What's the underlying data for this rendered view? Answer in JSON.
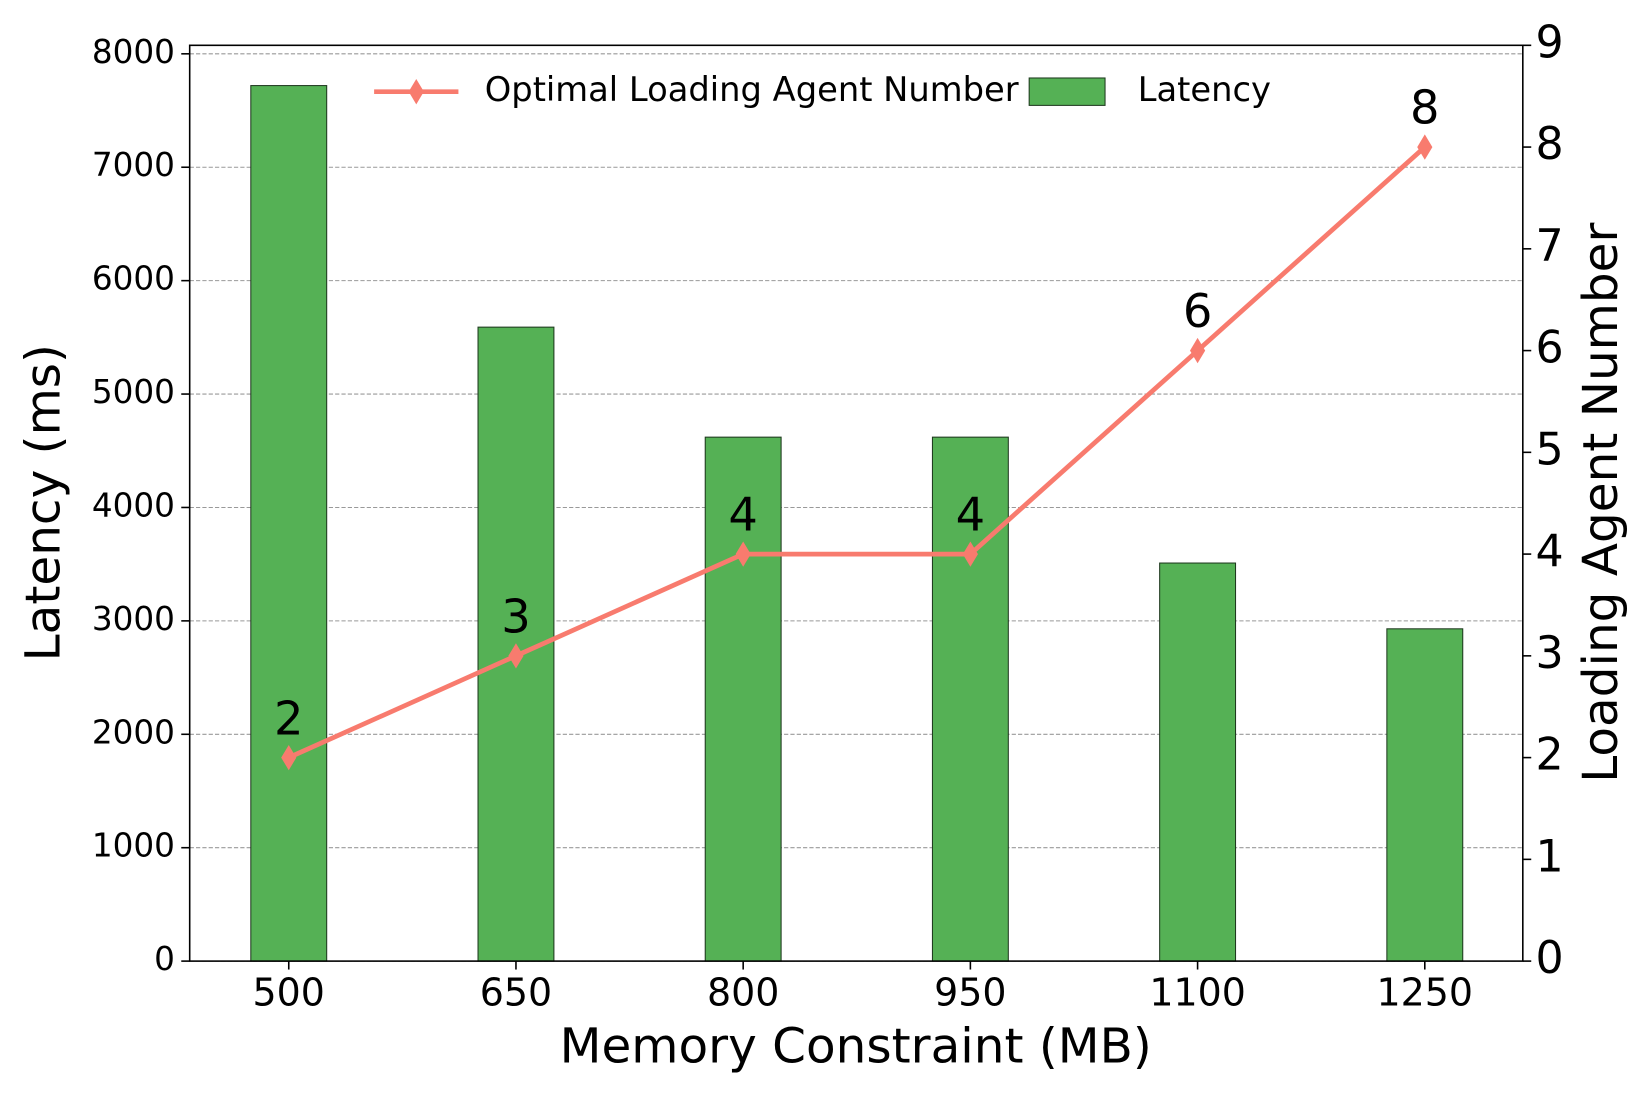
{
  "chart_data": {
    "type": "bar_line",
    "x_label": "Memory Constraint (MB)",
    "y_label": "Latency (ms)",
    "y2_label": "Loading Agent Number",
    "categories": [
      "500",
      "650",
      "800",
      "950",
      "1100",
      "1250"
    ],
    "series": [
      {
        "name": "Optimal Loading Agent Number",
        "type": "line",
        "axis": "y2",
        "color": "#f87b6e",
        "marker": "diamond",
        "values": [
          2,
          3,
          4,
          4,
          6,
          8
        ]
      },
      {
        "name": "Latency",
        "type": "bar",
        "color": "#55b155",
        "values": [
          7720,
          5590,
          4620,
          4620,
          3510,
          2930
        ]
      }
    ],
    "ylim": [
      0,
      8075
    ],
    "yticks": [
      0,
      1000,
      2000,
      3000,
      4000,
      5000,
      6000,
      7000,
      8000
    ],
    "y2lim": [
      0,
      9
    ],
    "y2ticks": [
      0,
      1,
      2,
      3,
      4,
      5,
      6,
      7,
      8,
      9
    ],
    "grid": true,
    "legend": "upper center"
  }
}
